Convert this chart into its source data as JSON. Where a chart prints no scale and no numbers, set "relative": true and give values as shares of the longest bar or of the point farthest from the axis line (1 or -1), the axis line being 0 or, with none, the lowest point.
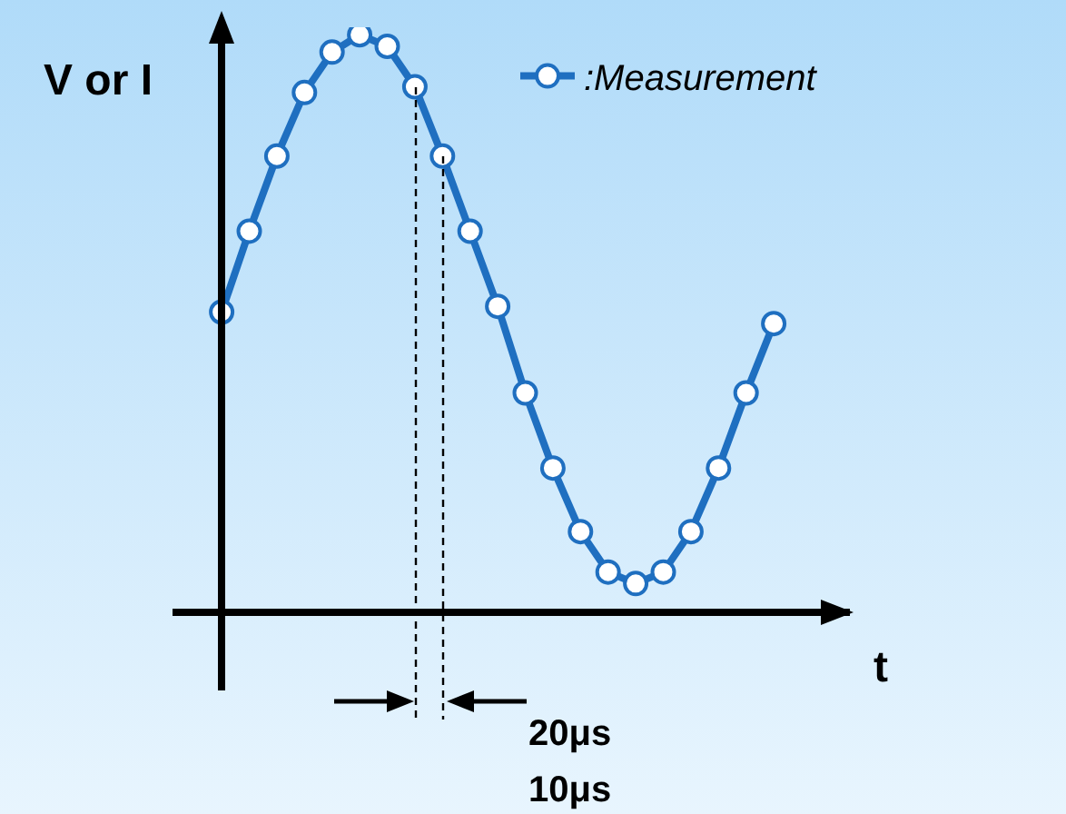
{
  "chart_data": {
    "type": "line",
    "relative": true,
    "xlabel": "t",
    "ylabel": "V or I",
    "categories": [
      null,
      null,
      null,
      null,
      null,
      null,
      null,
      null,
      null,
      null,
      null,
      null,
      null,
      null,
      null,
      null,
      null,
      null,
      null,
      null,
      null
    ],
    "series": [
      {
        "name": ":Measurement",
        "color": "#1f6fc0",
        "values": [
          0.52,
          0.66,
          0.79,
          0.9,
          0.97,
          1,
          0.98,
          0.91,
          0.79,
          0.66,
          0.53,
          0.38,
          0.25,
          0.14,
          0.07,
          0.05,
          0.07,
          0.14,
          0.25,
          0.38,
          0.5
        ]
      }
    ],
    "marker": "circle",
    "line_style": "solid",
    "grid": false,
    "legend": "top right",
    "annotations": [
      "20μs",
      "10μs"
    ]
  }
}
